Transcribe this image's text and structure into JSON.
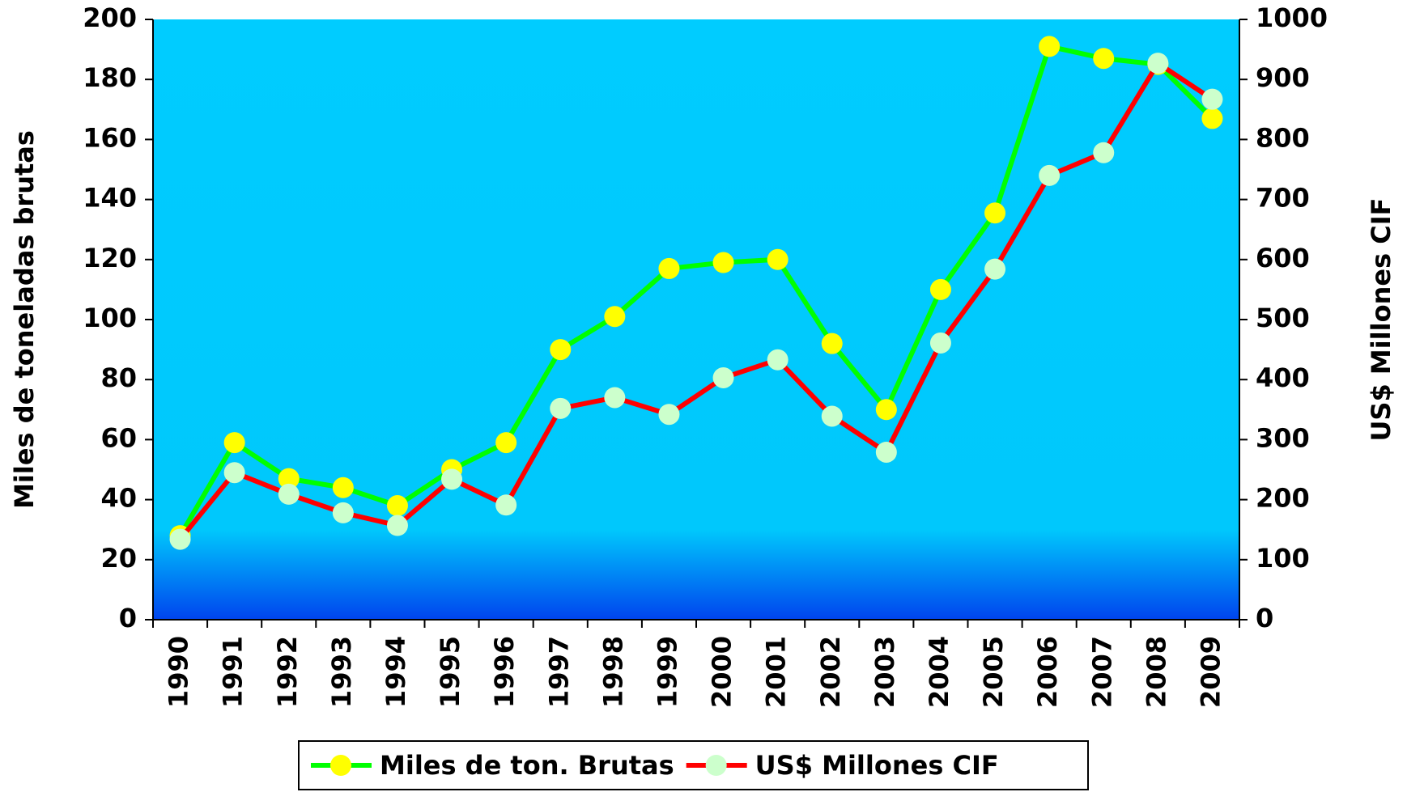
{
  "chart_data": {
    "type": "line",
    "y_label": "Miles de toneladas brutas",
    "y2_label": "US$ Millones CIF",
    "categories": [
      "1990",
      "1991",
      "1992",
      "1993",
      "1994",
      "1995",
      "1996",
      "1997",
      "1998",
      "1999",
      "2000",
      "2001",
      "2002",
      "2003",
      "2004",
      "2005",
      "2006",
      "2007",
      "2008",
      "2009"
    ],
    "series": [
      {
        "name": "Miles de ton. Brutas",
        "color": "#00ff00",
        "marker_color": "#ffff00",
        "values": [
          28,
          59,
          47,
          44,
          38,
          50,
          59,
          90,
          101,
          117,
          119,
          120,
          92,
          70,
          110,
          135.5,
          191,
          187,
          185,
          167
        ]
      },
      {
        "name": "US$ Millones CIF",
        "color": "#ff0000",
        "marker_color": "#ccffcc",
        "axis": "y2",
        "values": [
          134,
          245,
          209,
          178,
          157,
          234,
          191,
          352,
          370,
          342,
          403,
          433,
          339,
          279,
          461,
          584,
          740,
          778,
          927,
          867
        ]
      }
    ],
    "ylim": [
      0,
      200
    ],
    "yticks": [
      0,
      20,
      40,
      60,
      80,
      100,
      120,
      140,
      160,
      180,
      200
    ],
    "y2lim": [
      0,
      1000
    ],
    "y2ticks": [
      0,
      100,
      200,
      300,
      400,
      500,
      600,
      700,
      800,
      900,
      1000
    ],
    "legend": "bottom"
  }
}
